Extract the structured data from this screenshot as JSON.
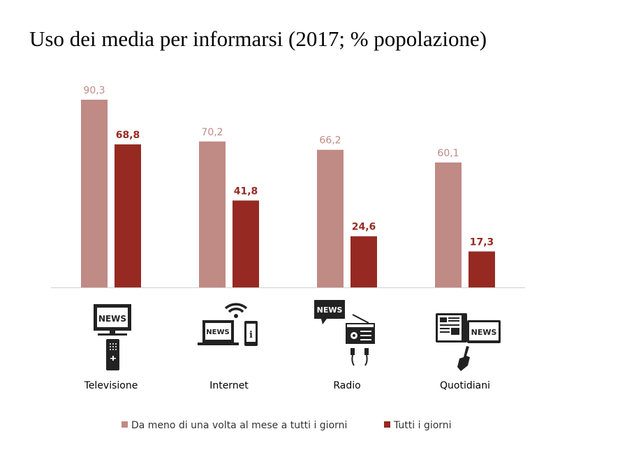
{
  "chart_data": {
    "type": "bar",
    "title": "Uso dei media per informarsi (2017; % popolazione)",
    "categories": [
      "Televisione",
      "Internet",
      "Radio",
      "Quotidiani"
    ],
    "series": [
      {
        "name": "Da meno di una volta al mese a tutti i giorni",
        "values": [
          90.3,
          70.2,
          66.2,
          60.1
        ],
        "labels": [
          "90,3",
          "70,2",
          "66,2",
          "60,1"
        ],
        "color": "#c08a85"
      },
      {
        "name": "Tutti i giorni",
        "values": [
          68.8,
          41.8,
          24.6,
          17.3
        ],
        "labels": [
          "68,8",
          "41,8",
          "24,6",
          "17,3"
        ],
        "color": "#962a22"
      }
    ],
    "ylim": [
      0,
      100
    ],
    "grid": false,
    "legend": "bottom",
    "xlabel": "",
    "ylabel": ""
  },
  "icons": {
    "names": [
      "tv-remote-icon",
      "laptop-phone-wifi-icon",
      "radio-earphones-icon",
      "newspaper-tablet-hand-icon"
    ],
    "news_text": "NEWS"
  }
}
